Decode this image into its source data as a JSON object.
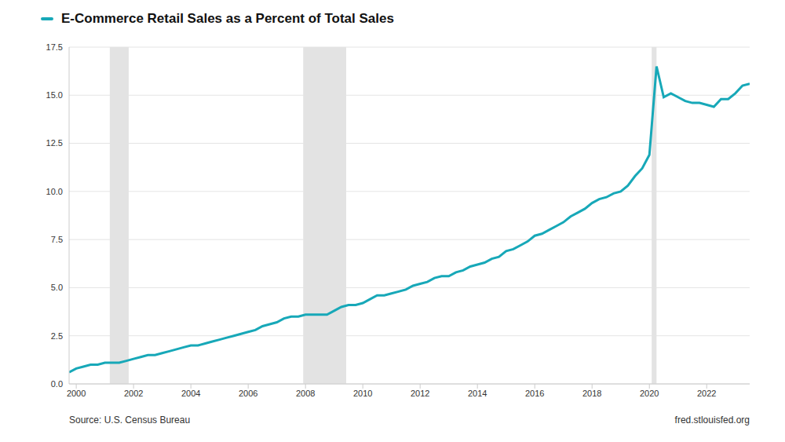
{
  "chart_data": {
    "type": "line",
    "legend": "top-left",
    "grid": true,
    "annotations": [
      "Source: U.S. Census Bureau",
      "fred.stlouisfed.org"
    ],
    "x": [
      1999.75,
      2000,
      2000.25,
      2000.5,
      2000.75,
      2001,
      2001.25,
      2001.5,
      2001.75,
      2002,
      2002.25,
      2002.5,
      2002.75,
      2003,
      2003.25,
      2003.5,
      2003.75,
      2004,
      2004.25,
      2004.5,
      2004.75,
      2005,
      2005.25,
      2005.5,
      2005.75,
      2006,
      2006.25,
      2006.5,
      2006.75,
      2007,
      2007.25,
      2007.5,
      2007.75,
      2008,
      2008.25,
      2008.5,
      2008.75,
      2009,
      2009.25,
      2009.5,
      2009.75,
      2010,
      2010.25,
      2010.5,
      2010.75,
      2011,
      2011.25,
      2011.5,
      2011.75,
      2012,
      2012.25,
      2012.5,
      2012.75,
      2013,
      2013.25,
      2013.5,
      2013.75,
      2014,
      2014.25,
      2014.5,
      2014.75,
      2015,
      2015.25,
      2015.5,
      2015.75,
      2016,
      2016.25,
      2016.5,
      2016.75,
      2017,
      2017.25,
      2017.5,
      2017.75,
      2018,
      2018.25,
      2018.5,
      2018.75,
      2019,
      2019.25,
      2019.5,
      2019.75,
      2020,
      2020.25,
      2020.5,
      2020.75,
      2021,
      2021.25,
      2021.5,
      2021.75,
      2022,
      2022.25,
      2022.5,
      2022.75,
      2023,
      2023.25,
      2023.5
    ],
    "series": [
      {
        "name": "E-Commerce Retail Sales as a Percent of Total Sales",
        "color": "#17a8b8",
        "values": [
          0.6,
          0.8,
          0.9,
          1.0,
          1.0,
          1.1,
          1.1,
          1.1,
          1.2,
          1.3,
          1.4,
          1.5,
          1.5,
          1.6,
          1.7,
          1.8,
          1.9,
          2.0,
          2.0,
          2.1,
          2.2,
          2.3,
          2.4,
          2.5,
          2.6,
          2.7,
          2.8,
          3.0,
          3.1,
          3.2,
          3.4,
          3.5,
          3.5,
          3.6,
          3.6,
          3.6,
          3.6,
          3.8,
          4.0,
          4.1,
          4.1,
          4.2,
          4.4,
          4.6,
          4.6,
          4.7,
          4.8,
          4.9,
          5.1,
          5.2,
          5.3,
          5.5,
          5.6,
          5.6,
          5.8,
          5.9,
          6.1,
          6.2,
          6.3,
          6.5,
          6.6,
          6.9,
          7.0,
          7.2,
          7.4,
          7.7,
          7.8,
          8.0,
          8.2,
          8.4,
          8.7,
          8.9,
          9.1,
          9.4,
          9.6,
          9.7,
          9.9,
          10.0,
          10.3,
          10.8,
          11.2,
          11.9,
          16.5,
          14.9,
          15.1,
          14.9,
          14.7,
          14.6,
          14.6,
          14.5,
          14.4,
          14.8,
          14.8,
          15.1,
          15.5,
          15.6
        ]
      }
    ],
    "recessions": [
      [
        2001.17,
        2001.83
      ],
      [
        2007.92,
        2009.42
      ],
      [
        2020.08,
        2020.25
      ]
    ],
    "xlim": [
      1999.75,
      2023.5
    ],
    "xticks": [
      2000,
      2002,
      2004,
      2006,
      2008,
      2010,
      2012,
      2014,
      2016,
      2018,
      2020,
      2022
    ],
    "ylim": [
      0,
      17.5
    ],
    "yticks": [
      {
        "value": 0,
        "label": "0.0"
      },
      {
        "value": 2.5,
        "label": "2.5"
      },
      {
        "value": 5,
        "label": "5.0"
      },
      {
        "value": 7.5,
        "label": "7.5"
      },
      {
        "value": 10,
        "label": "10.0"
      },
      {
        "value": 12.5,
        "label": "12.5"
      },
      {
        "value": 15,
        "label": "15.0"
      },
      {
        "value": 17.5,
        "label": "17.5"
      }
    ]
  }
}
